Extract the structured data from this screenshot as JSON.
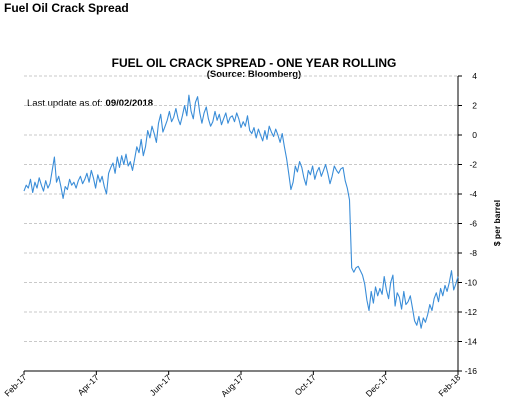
{
  "page": {
    "title": "Fuel Oil Crack Spread"
  },
  "chart_data": {
    "type": "line",
    "title": "FUEL OIL CRACK SPREAD - ONE YEAR ROLLING",
    "subtitle": "(Source: Bloomberg)",
    "note_label": "Last update as of:",
    "note_value": "09/02/2018",
    "ylabel": "$ per barrel",
    "y_axis_side": "right",
    "ylim": [
      -16,
      4
    ],
    "yticks": [
      4,
      2,
      0,
      -2,
      -4,
      -6,
      -8,
      -10,
      -12,
      -14,
      -16
    ],
    "x_tick_labels": [
      "Feb-17",
      "Apr-17",
      "Jun-17",
      "Aug-17",
      "Oct-17",
      "Dec-17",
      "Feb-18"
    ],
    "grid": "horizontal dashed",
    "line_color": "#3a8dd8",
    "series": [
      {
        "values": [
          -3.8,
          -3.4,
          -3.6,
          -3.0,
          -3.9,
          -3.2,
          -3.6,
          -2.9,
          -3.4,
          -3.8,
          -3.1,
          -3.6,
          -3.3,
          -2.4,
          -1.5,
          -3.2,
          -2.8,
          -3.5,
          -4.3,
          -3.5,
          -3.7,
          -3.0,
          -3.4,
          -3.2,
          -3.6,
          -3.1,
          -2.8,
          -3.3,
          -3.0,
          -2.6,
          -3.2,
          -2.4,
          -2.9,
          -3.6,
          -2.7,
          -3.2,
          -2.8,
          -3.5,
          -4.0,
          -2.6,
          -2.2,
          -1.9,
          -2.6,
          -1.5,
          -2.2,
          -1.4,
          -2.0,
          -1.3,
          -2.1,
          -1.8,
          -2.4,
          -1.6,
          -0.8,
          -1.2,
          -0.3,
          -1.4,
          -0.8,
          0.3,
          -0.2,
          0.6,
          0.1,
          -0.5,
          0.8,
          1.4,
          0.2,
          0.6,
          1.0,
          1.6,
          0.9,
          1.2,
          1.8,
          1.1,
          0.7,
          1.3,
          2.0,
          1.3,
          2.7,
          1.6,
          1.1,
          2.2,
          2.6,
          1.5,
          0.8,
          1.5,
          1.9,
          1.1,
          0.6,
          0.9,
          1.6,
          1.0,
          1.4,
          0.7,
          1.1,
          1.5,
          0.8,
          1.2,
          1.3,
          0.9,
          1.5,
          1.1,
          0.5,
          0.9,
          0.6,
          1.3,
          0.3,
          0.1,
          0.5,
          -0.2,
          0.4,
          0.0,
          -0.4,
          0.3,
          -0.3,
          0.6,
          0.2,
          -0.1,
          0.4,
          0.0,
          -0.5,
          0.1,
          -0.8,
          -1.6,
          -2.6,
          -3.7,
          -3.2,
          -2.1,
          -2.5,
          -1.8,
          -2.2,
          -2.9,
          -3.4,
          -2.4,
          -2.7,
          -2.1,
          -3.0,
          -2.5,
          -2.2,
          -2.8,
          -2.4,
          -2.0,
          -2.6,
          -3.3,
          -2.8,
          -2.1,
          -2.4,
          -2.6,
          -2.3,
          -2.2,
          -3.1,
          -3.6,
          -4.4,
          -9.0,
          -9.3,
          -9.0,
          -8.9,
          -9.2,
          -9.5,
          -10.1,
          -11.2,
          -11.9,
          -10.6,
          -11.4,
          -10.3,
          -10.9,
          -10.4,
          -10.8,
          -9.6,
          -10.5,
          -11.1,
          -10.0,
          -9.5,
          -11.6,
          -10.7,
          -11.0,
          -11.8,
          -10.6,
          -11.5,
          -11.3,
          -10.9,
          -11.7,
          -12.6,
          -12.9,
          -12.3,
          -13.1,
          -12.4,
          -12.7,
          -12.2,
          -11.5,
          -11.9,
          -11.1,
          -10.7,
          -11.3,
          -10.4,
          -10.9,
          -10.2,
          -10.6,
          -10.0,
          -9.2,
          -10.5,
          -10.1,
          -9.6
        ]
      }
    ]
  }
}
